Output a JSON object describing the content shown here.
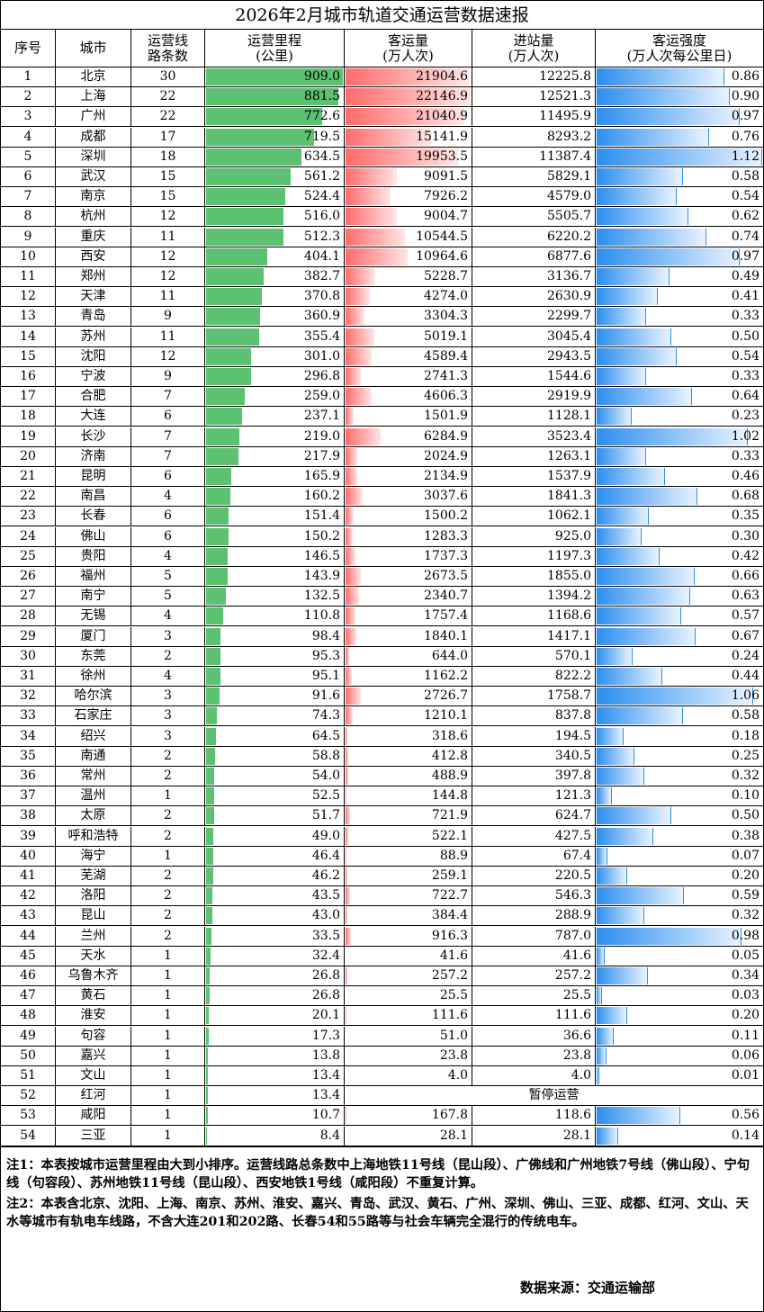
{
  "title": "2026年2月城市轨道交通运营数据速报",
  "headers": [
    {
      "l1": "序号",
      "l2": ""
    },
    {
      "l1": "城市",
      "l2": ""
    },
    {
      "l1": "运营线",
      "l2": "路条数"
    },
    {
      "l1": "运营里程",
      "l2": "(公里)"
    },
    {
      "l1": "客运量",
      "l2": "(万人次)"
    },
    {
      "l1": "进站量",
      "l2": "(万人次)"
    },
    {
      "l1": "客运强度",
      "l2": "(万人次每公里日)"
    }
  ],
  "colors": {
    "km_bar": "#5cc271",
    "pax_bar": "#ff6b6b",
    "intensity_bar": "#2b8ef0"
  },
  "bar_max": {
    "km": 909.0,
    "pax": 22146.9,
    "intensity": 1.12
  },
  "rows": [
    {
      "no": "1",
      "city": "北京",
      "lines": "30",
      "km": "909.0",
      "pax": "21904.6",
      "entry": "12225.8",
      "intensity": "0.86"
    },
    {
      "no": "2",
      "city": "上海",
      "lines": "22",
      "km": "881.5",
      "pax": "22146.9",
      "entry": "12521.3",
      "intensity": "0.90"
    },
    {
      "no": "3",
      "city": "广州",
      "lines": "22",
      "km": "772.6",
      "pax": "21040.9",
      "entry": "11495.9",
      "intensity": "0.97"
    },
    {
      "no": "4",
      "city": "成都",
      "lines": "17",
      "km": "719.5",
      "pax": "15141.9",
      "entry": "8293.2",
      "intensity": "0.76"
    },
    {
      "no": "5",
      "city": "深圳",
      "lines": "18",
      "km": "634.5",
      "pax": "19953.5",
      "entry": "11387.4",
      "intensity": "1.12"
    },
    {
      "no": "6",
      "city": "武汉",
      "lines": "15",
      "km": "561.2",
      "pax": "9091.5",
      "entry": "5829.1",
      "intensity": "0.58"
    },
    {
      "no": "7",
      "city": "南京",
      "lines": "15",
      "km": "524.4",
      "pax": "7926.2",
      "entry": "4579.0",
      "intensity": "0.54"
    },
    {
      "no": "8",
      "city": "杭州",
      "lines": "12",
      "km": "516.0",
      "pax": "9004.7",
      "entry": "5505.7",
      "intensity": "0.62"
    },
    {
      "no": "9",
      "city": "重庆",
      "lines": "11",
      "km": "512.3",
      "pax": "10544.5",
      "entry": "6220.2",
      "intensity": "0.74"
    },
    {
      "no": "10",
      "city": "西安",
      "lines": "12",
      "km": "404.1",
      "pax": "10964.6",
      "entry": "6877.6",
      "intensity": "0.97"
    },
    {
      "no": "11",
      "city": "郑州",
      "lines": "12",
      "km": "382.7",
      "pax": "5228.7",
      "entry": "3136.7",
      "intensity": "0.49"
    },
    {
      "no": "12",
      "city": "天津",
      "lines": "11",
      "km": "370.8",
      "pax": "4274.0",
      "entry": "2630.9",
      "intensity": "0.41"
    },
    {
      "no": "13",
      "city": "青岛",
      "lines": "9",
      "km": "360.9",
      "pax": "3304.3",
      "entry": "2299.7",
      "intensity": "0.33"
    },
    {
      "no": "14",
      "city": "苏州",
      "lines": "11",
      "km": "355.4",
      "pax": "5019.1",
      "entry": "3045.4",
      "intensity": "0.50"
    },
    {
      "no": "15",
      "city": "沈阳",
      "lines": "12",
      "km": "301.0",
      "pax": "4589.4",
      "entry": "2943.5",
      "intensity": "0.54"
    },
    {
      "no": "16",
      "city": "宁波",
      "lines": "9",
      "km": "296.8",
      "pax": "2741.3",
      "entry": "1544.6",
      "intensity": "0.33"
    },
    {
      "no": "17",
      "city": "合肥",
      "lines": "7",
      "km": "259.0",
      "pax": "4606.3",
      "entry": "2919.9",
      "intensity": "0.64"
    },
    {
      "no": "18",
      "city": "大连",
      "lines": "6",
      "km": "237.1",
      "pax": "1501.9",
      "entry": "1128.1",
      "intensity": "0.23"
    },
    {
      "no": "19",
      "city": "长沙",
      "lines": "7",
      "km": "219.0",
      "pax": "6284.9",
      "entry": "3523.4",
      "intensity": "1.02"
    },
    {
      "no": "20",
      "city": "济南",
      "lines": "7",
      "km": "217.9",
      "pax": "2024.9",
      "entry": "1263.1",
      "intensity": "0.33"
    },
    {
      "no": "21",
      "city": "昆明",
      "lines": "6",
      "km": "165.9",
      "pax": "2134.9",
      "entry": "1537.9",
      "intensity": "0.46"
    },
    {
      "no": "22",
      "city": "南昌",
      "lines": "4",
      "km": "160.2",
      "pax": "3037.6",
      "entry": "1841.3",
      "intensity": "0.68"
    },
    {
      "no": "23",
      "city": "长春",
      "lines": "6",
      "km": "151.4",
      "pax": "1500.2",
      "entry": "1062.1",
      "intensity": "0.35"
    },
    {
      "no": "24",
      "city": "佛山",
      "lines": "6",
      "km": "150.2",
      "pax": "1283.3",
      "entry": "925.0",
      "intensity": "0.30"
    },
    {
      "no": "25",
      "city": "贵阳",
      "lines": "4",
      "km": "146.5",
      "pax": "1737.3",
      "entry": "1197.3",
      "intensity": "0.42"
    },
    {
      "no": "26",
      "city": "福州",
      "lines": "5",
      "km": "143.9",
      "pax": "2673.5",
      "entry": "1855.0",
      "intensity": "0.66"
    },
    {
      "no": "27",
      "city": "南宁",
      "lines": "5",
      "km": "132.5",
      "pax": "2340.7",
      "entry": "1394.2",
      "intensity": "0.63"
    },
    {
      "no": "28",
      "city": "无锡",
      "lines": "4",
      "km": "110.8",
      "pax": "1757.4",
      "entry": "1168.6",
      "intensity": "0.57"
    },
    {
      "no": "29",
      "city": "厦门",
      "lines": "3",
      "km": "98.4",
      "pax": "1840.1",
      "entry": "1417.1",
      "intensity": "0.67"
    },
    {
      "no": "30",
      "city": "东莞",
      "lines": "2",
      "km": "95.3",
      "pax": "644.0",
      "entry": "570.1",
      "intensity": "0.24"
    },
    {
      "no": "31",
      "city": "徐州",
      "lines": "4",
      "km": "95.1",
      "pax": "1162.2",
      "entry": "822.2",
      "intensity": "0.44"
    },
    {
      "no": "32",
      "city": "哈尔滨",
      "lines": "3",
      "km": "91.6",
      "pax": "2726.7",
      "entry": "1758.7",
      "intensity": "1.06"
    },
    {
      "no": "33",
      "city": "石家庄",
      "lines": "3",
      "km": "74.3",
      "pax": "1210.1",
      "entry": "837.8",
      "intensity": "0.58"
    },
    {
      "no": "34",
      "city": "绍兴",
      "lines": "3",
      "km": "64.5",
      "pax": "318.6",
      "entry": "194.5",
      "intensity": "0.18"
    },
    {
      "no": "35",
      "city": "南通",
      "lines": "2",
      "km": "58.8",
      "pax": "412.8",
      "entry": "340.5",
      "intensity": "0.25"
    },
    {
      "no": "36",
      "city": "常州",
      "lines": "2",
      "km": "54.0",
      "pax": "488.9",
      "entry": "397.8",
      "intensity": "0.32"
    },
    {
      "no": "37",
      "city": "温州",
      "lines": "1",
      "km": "52.5",
      "pax": "144.8",
      "entry": "121.3",
      "intensity": "0.10"
    },
    {
      "no": "38",
      "city": "太原",
      "lines": "2",
      "km": "51.7",
      "pax": "721.9",
      "entry": "624.7",
      "intensity": "0.50"
    },
    {
      "no": "39",
      "city": "呼和浩特",
      "lines": "2",
      "km": "49.0",
      "pax": "522.1",
      "entry": "427.5",
      "intensity": "0.38"
    },
    {
      "no": "40",
      "city": "海宁",
      "lines": "1",
      "km": "46.4",
      "pax": "88.9",
      "entry": "67.4",
      "intensity": "0.07"
    },
    {
      "no": "41",
      "city": "芜湖",
      "lines": "2",
      "km": "46.2",
      "pax": "259.1",
      "entry": "220.5",
      "intensity": "0.20"
    },
    {
      "no": "42",
      "city": "洛阳",
      "lines": "2",
      "km": "43.5",
      "pax": "722.7",
      "entry": "546.3",
      "intensity": "0.59"
    },
    {
      "no": "43",
      "city": "昆山",
      "lines": "2",
      "km": "43.0",
      "pax": "384.4",
      "entry": "288.9",
      "intensity": "0.32"
    },
    {
      "no": "44",
      "city": "兰州",
      "lines": "2",
      "km": "33.5",
      "pax": "916.3",
      "entry": "787.0",
      "intensity": "0.98"
    },
    {
      "no": "45",
      "city": "天水",
      "lines": "1",
      "km": "32.4",
      "pax": "41.6",
      "entry": "41.6",
      "intensity": "0.05"
    },
    {
      "no": "46",
      "city": "乌鲁木齐",
      "lines": "1",
      "km": "26.8",
      "pax": "257.2",
      "entry": "257.2",
      "intensity": "0.34"
    },
    {
      "no": "47",
      "city": "黄石",
      "lines": "1",
      "km": "26.8",
      "pax": "25.5",
      "entry": "25.5",
      "intensity": "0.03"
    },
    {
      "no": "48",
      "city": "淮安",
      "lines": "1",
      "km": "20.1",
      "pax": "111.6",
      "entry": "111.6",
      "intensity": "0.20"
    },
    {
      "no": "49",
      "city": "句容",
      "lines": "1",
      "km": "17.3",
      "pax": "51.0",
      "entry": "36.6",
      "intensity": "0.11"
    },
    {
      "no": "50",
      "city": "嘉兴",
      "lines": "1",
      "km": "13.8",
      "pax": "23.8",
      "entry": "23.8",
      "intensity": "0.06"
    },
    {
      "no": "51",
      "city": "文山",
      "lines": "1",
      "km": "13.4",
      "pax": "4.0",
      "entry": "4.0",
      "intensity": "0.01"
    },
    {
      "no": "52",
      "city": "红河",
      "lines": "1",
      "km": "13.4",
      "suspended": "暂停运营"
    },
    {
      "no": "53",
      "city": "咸阳",
      "lines": "1",
      "km": "10.7",
      "pax": "167.8",
      "entry": "118.6",
      "intensity": "0.56"
    },
    {
      "no": "54",
      "city": "三亚",
      "lines": "1",
      "km": "8.4",
      "pax": "28.1",
      "entry": "28.1",
      "intensity": "0.14"
    }
  ],
  "notes": {
    "note1": "注1：本表按城市运营里程由大到小排序。运营线路总条数中上海地铁11号线（昆山段）、广佛线和广州地铁7号线（佛山段）、宁句线（句容段）、苏州地铁11号线（昆山段）、西安地铁1号线（咸阳段）不重复计算。",
    "note2": "注2：本表含北京、沈阳、上海、南京、苏州、淮安、嘉兴、青岛、武汉、黄石、广州、深圳、佛山、三亚、成都、红河、文山、天水等城市有轨电车线路，不含大连201和202路、长春54和55路等与社会车辆完全混行的传统电车。",
    "source": "数据来源：交通运输部"
  }
}
